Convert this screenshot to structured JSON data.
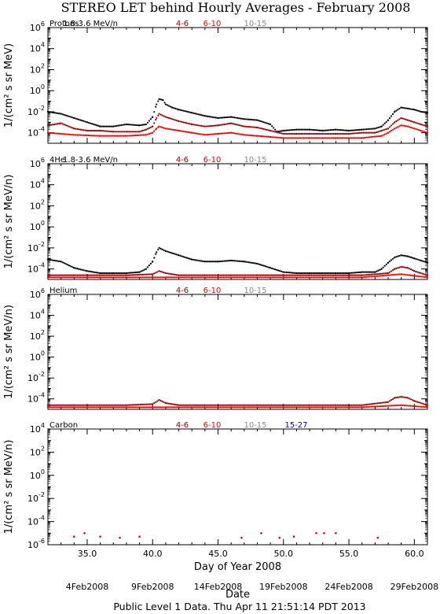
{
  "page": {
    "title": "STEREO LET behind Hourly Averages - February 2008",
    "footer": "Public Level 1 Data. Thu Apr 11 21:51:14 PDT 2013"
  },
  "colors": {
    "black": "#000000",
    "darkred": "#a00000",
    "red": "#ee0000",
    "gray": "#888888",
    "blue": "#0000cc"
  },
  "chart_data": [
    {
      "type": "scatter",
      "panel": "Protons",
      "ylabel": "1/(cm² s sr MeV)",
      "yscale": "log",
      "ylim_exp": [
        -5,
        6
      ],
      "ytick_exps": [
        -4,
        -2,
        0,
        2,
        4,
        6
      ],
      "xlim": [
        32,
        61
      ],
      "xticks": [
        35,
        40,
        45,
        50,
        55,
        60
      ],
      "energy_labels": [
        "1.8-3.6 MeV/n",
        "4-6",
        "6-10",
        "10-15"
      ],
      "series": [
        {
          "name": "1.8-3.6 MeV/n",
          "color": "black",
          "x": [
            32,
            33,
            34,
            35,
            36,
            37,
            38,
            39,
            39.5,
            40,
            40.3,
            40.5,
            40.8,
            41,
            41.5,
            42,
            43,
            44,
            45,
            46,
            47,
            48,
            49,
            49.5,
            50,
            51,
            52,
            53,
            54,
            55,
            56,
            57,
            57.5,
            58,
            58.5,
            59,
            59.5,
            60,
            60.5,
            61
          ],
          "y_exp": [
            -2.0,
            -2.2,
            -2.6,
            -3.0,
            -3.4,
            -3.4,
            -3.2,
            -3.3,
            -3.2,
            -2.5,
            -1.3,
            -0.8,
            -0.9,
            -1.3,
            -1.6,
            -1.8,
            -2.1,
            -2.4,
            -2.6,
            -2.5,
            -2.7,
            -2.8,
            -3.2,
            -3.9,
            -3.8,
            -3.7,
            -3.7,
            -3.8,
            -3.7,
            -3.8,
            -3.7,
            -3.6,
            -3.4,
            -2.8,
            -2.0,
            -1.6,
            -1.7,
            -1.8,
            -2.0,
            -2.1
          ]
        },
        {
          "name": "4-6",
          "color": "darkred",
          "x": [
            32,
            33,
            34,
            35,
            36,
            37,
            38,
            39,
            39.5,
            40,
            40.3,
            40.5,
            41,
            42,
            43,
            44,
            45,
            46,
            47,
            48,
            49,
            50,
            51,
            52,
            53,
            54,
            55,
            56,
            57,
            57.5,
            58,
            58.5,
            59,
            59.5,
            60,
            60.5,
            61
          ],
          "y_exp": [
            -3.3,
            -3.1,
            -3.6,
            -3.8,
            -3.8,
            -3.9,
            -3.9,
            -3.9,
            -3.7,
            -3.4,
            -2.6,
            -2.2,
            -2.5,
            -2.9,
            -3.2,
            -3.4,
            -3.3,
            -3.1,
            -3.4,
            -3.5,
            -3.8,
            -4.1,
            -4.1,
            -4.1,
            -4.1,
            -4.1,
            -4.1,
            -4.0,
            -4.0,
            -3.8,
            -3.6,
            -3.0,
            -2.6,
            -2.8,
            -3.0,
            -3.2,
            -3.4
          ]
        },
        {
          "name": "6-10",
          "color": "red",
          "x": [
            32,
            34,
            36,
            38,
            39.5,
            40,
            40.3,
            40.5,
            41,
            42,
            43,
            44,
            45,
            46,
            47,
            48,
            49,
            50,
            52,
            54,
            56,
            57.5,
            58,
            58.5,
            59,
            59.5,
            60,
            60.5,
            61
          ],
          "y_exp": [
            -4.0,
            -4.2,
            -4.3,
            -4.3,
            -4.2,
            -4.0,
            -3.6,
            -3.4,
            -3.6,
            -3.8,
            -4.0,
            -4.2,
            -4.1,
            -4.0,
            -4.2,
            -4.3,
            -4.4,
            -4.5,
            -4.5,
            -4.5,
            -4.5,
            -4.3,
            -4.0,
            -3.6,
            -3.3,
            -3.4,
            -3.6,
            -3.8,
            -4.0
          ]
        },
        {
          "name": "10-15",
          "color": "gray",
          "x": [],
          "y_exp": []
        }
      ]
    },
    {
      "type": "scatter",
      "panel": "4He",
      "ylabel": "1/(cm² s sr MeV/n)",
      "yscale": "log",
      "ylim_exp": [
        -5,
        6
      ],
      "ytick_exps": [
        -4,
        -2,
        0,
        2,
        4,
        6
      ],
      "xlim": [
        32,
        61
      ],
      "xticks": [
        35,
        40,
        45,
        50,
        55,
        60
      ],
      "energy_labels": [
        "1.8-3.6 MeV/n",
        "4-6",
        "6-10",
        "10-15"
      ],
      "series": [
        {
          "name": "1.8-3.6 MeV/n",
          "color": "black",
          "x": [
            32,
            33,
            34,
            35,
            36,
            37,
            38,
            39,
            39.5,
            40,
            40.3,
            40.5,
            41,
            42,
            43,
            44,
            45,
            46,
            47,
            48,
            49,
            50,
            51,
            52,
            53,
            54,
            55,
            56,
            57,
            57.5,
            58,
            58.5,
            59,
            59.5,
            60,
            60.5,
            61
          ],
          "y_exp": [
            -3.1,
            -3.3,
            -3.9,
            -4.2,
            -4.4,
            -4.4,
            -4.4,
            -4.3,
            -4.0,
            -3.3,
            -2.4,
            -2.0,
            -2.3,
            -2.7,
            -3.1,
            -3.3,
            -3.3,
            -3.2,
            -3.3,
            -3.5,
            -3.9,
            -4.3,
            -4.4,
            -4.4,
            -4.4,
            -4.4,
            -4.4,
            -4.3,
            -4.3,
            -4.0,
            -3.4,
            -2.9,
            -2.7,
            -2.8,
            -3.0,
            -3.2,
            -3.4
          ]
        },
        {
          "name": "4-6",
          "color": "darkred",
          "x": [
            32,
            34,
            36,
            38,
            40,
            40.5,
            41,
            42,
            44,
            46,
            48,
            50,
            52,
            54,
            56,
            58,
            58.5,
            59,
            59.5,
            60,
            61
          ],
          "y_exp": [
            -4.6,
            -4.6,
            -4.6,
            -4.6,
            -4.5,
            -4.2,
            -4.4,
            -4.6,
            -4.6,
            -4.6,
            -4.6,
            -4.6,
            -4.6,
            -4.6,
            -4.6,
            -4.4,
            -4.0,
            -3.8,
            -3.9,
            -4.2,
            -4.6
          ]
        },
        {
          "name": "6-10",
          "color": "red",
          "x": [
            32,
            35,
            38,
            41,
            44,
            47,
            50,
            53,
            56,
            59,
            61
          ],
          "y_exp": [
            -4.8,
            -4.8,
            -4.8,
            -4.8,
            -4.8,
            -4.8,
            -4.8,
            -4.8,
            -4.8,
            -4.5,
            -4.8
          ]
        },
        {
          "name": "10-15",
          "color": "gray",
          "x": [],
          "y_exp": []
        }
      ]
    },
    {
      "type": "scatter",
      "panel": "Helium",
      "ylabel": "1/(cm² s sr MeV/n)",
      "yscale": "log",
      "ylim_exp": [
        -5,
        6
      ],
      "ytick_exps": [
        -4,
        -2,
        0,
        2,
        4,
        6
      ],
      "xlim": [
        32,
        61
      ],
      "xticks": [
        35,
        40,
        45,
        50,
        55,
        60
      ],
      "energy_labels": [
        "4-6",
        "6-10",
        "10-15"
      ],
      "series": [
        {
          "name": "4-6",
          "color": "darkred",
          "x": [
            32,
            34,
            36,
            38,
            40,
            40.5,
            41,
            42,
            44,
            46,
            48,
            50,
            52,
            54,
            56,
            58,
            58.5,
            59,
            59.5,
            60,
            61
          ],
          "y_exp": [
            -4.6,
            -4.6,
            -4.6,
            -4.6,
            -4.5,
            -4.1,
            -4.4,
            -4.6,
            -4.6,
            -4.6,
            -4.6,
            -4.6,
            -4.6,
            -4.6,
            -4.6,
            -4.3,
            -3.9,
            -3.8,
            -3.9,
            -4.2,
            -4.6
          ]
        },
        {
          "name": "6-10",
          "color": "red",
          "x": [
            32,
            35,
            38,
            41,
            44,
            47,
            50,
            53,
            56,
            59,
            61
          ],
          "y_exp": [
            -4.8,
            -4.8,
            -4.8,
            -4.8,
            -4.8,
            -4.8,
            -4.8,
            -4.8,
            -4.8,
            -4.6,
            -4.8
          ]
        },
        {
          "name": "10-15",
          "color": "gray",
          "x": [],
          "y_exp": []
        }
      ]
    },
    {
      "type": "scatter",
      "panel": "Carbon",
      "ylabel": "1/(cm² s sr MeV/n)",
      "yscale": "log",
      "ylim_exp": [
        -6,
        4
      ],
      "ytick_exps": [
        -6,
        -4,
        -2,
        0,
        2,
        4
      ],
      "xlim": [
        32,
        61
      ],
      "xticks": [
        35,
        40,
        45,
        50,
        55,
        60
      ],
      "energy_labels": [
        "4-6",
        "6-10",
        "10-15",
        "15-27"
      ],
      "series": [
        {
          "name": "4-6",
          "color": "darkred",
          "x": [],
          "y_exp": []
        },
        {
          "name": "6-10",
          "color": "red",
          "x": [
            34.0,
            34.8,
            36.0,
            37.5,
            39.0,
            46.8,
            48.3,
            49.7,
            50.8,
            52.5,
            53.1,
            54.0,
            57.2
          ],
          "y_exp": [
            -5.3,
            -5.0,
            -5.3,
            -5.4,
            -5.3,
            -5.4,
            -5.0,
            -5.4,
            -5.3,
            -5.0,
            -5.0,
            -5.0,
            -5.4
          ]
        },
        {
          "name": "10-15",
          "color": "gray",
          "x": [],
          "y_exp": []
        },
        {
          "name": "15-27",
          "color": "blue",
          "x": [],
          "y_exp": []
        }
      ],
      "xlabel": "Day of Year 2008",
      "dates": [
        {
          "x": 35.0,
          "label": "4Feb2008"
        },
        {
          "x": 40.0,
          "label": "9Feb2008"
        },
        {
          "x": 45.0,
          "label": "14Feb2008"
        },
        {
          "x": 50.0,
          "label": "19Feb2008"
        },
        {
          "x": 55.0,
          "label": "24Feb2008"
        },
        {
          "x": 60.0,
          "label": "29Feb2008"
        }
      ],
      "xlabel2": "Date"
    }
  ]
}
